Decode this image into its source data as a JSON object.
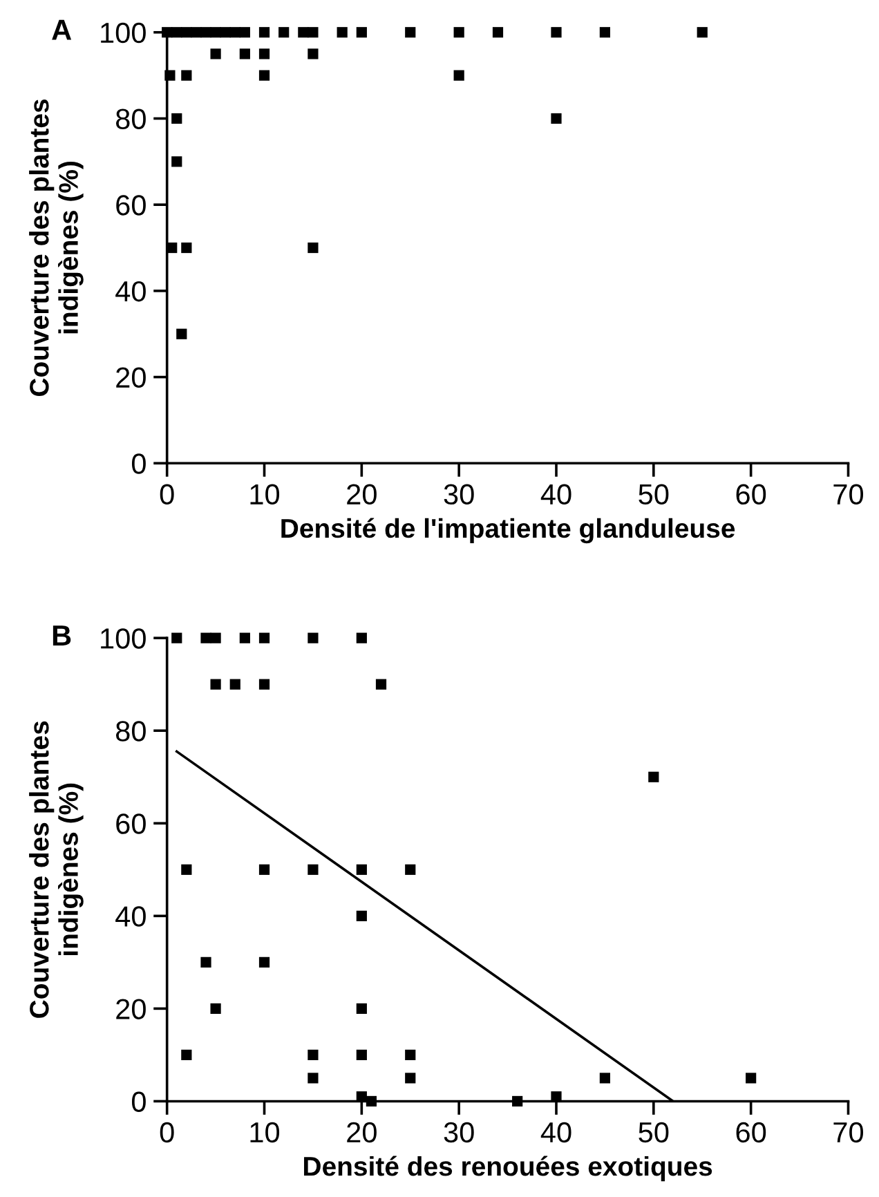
{
  "chart_data": [
    {
      "type": "scatter",
      "title": "A",
      "xlabel": "Densité de l'impatiente glanduleuse",
      "ylabel": "Couverture des plantes\nindigènes (%)",
      "xlim": [
        0,
        70
      ],
      "ylim": [
        0,
        100
      ],
      "xticks": [
        0,
        10,
        20,
        30,
        40,
        50,
        60,
        70
      ],
      "yticks": [
        0,
        20,
        40,
        60,
        80,
        100
      ],
      "marker": "square",
      "series": [
        {
          "color": "#000000",
          "x": [
            0,
            1,
            2,
            3,
            4,
            5,
            6,
            7,
            8,
            10,
            12,
            14,
            15,
            18,
            20,
            25,
            30,
            34,
            40,
            45,
            55,
            5,
            8,
            10,
            15,
            0.3,
            2,
            10,
            30,
            1,
            40,
            1,
            0.5,
            2,
            15,
            1.5
          ],
          "values": [
            100,
            100,
            100,
            100,
            100,
            100,
            100,
            100,
            100,
            100,
            100,
            100,
            100,
            100,
            100,
            100,
            100,
            100,
            100,
            100,
            100,
            95,
            95,
            95,
            95,
            90,
            90,
            90,
            90,
            80,
            80,
            70,
            50,
            50,
            50,
            30
          ]
        }
      ]
    },
    {
      "type": "scatter",
      "title": "B",
      "xlabel": "Densité des renouées exotiques",
      "ylabel": "Couverture des plantes\nindigènes (%)",
      "xlim": [
        0,
        70
      ],
      "ylim": [
        0,
        100
      ],
      "xticks": [
        0,
        10,
        20,
        30,
        40,
        50,
        60,
        70
      ],
      "yticks": [
        0,
        20,
        40,
        60,
        80,
        100
      ],
      "series": [
        {
          "marker": "square",
          "color": "#000000",
          "x": [
            1,
            4,
            5,
            8,
            10,
            15,
            20,
            5,
            7,
            10,
            22,
            50,
            2,
            10,
            15,
            20,
            25,
            20,
            4,
            10,
            5,
            20,
            2,
            15,
            20,
            25,
            15,
            25,
            45,
            60,
            20,
            40,
            21,
            36
          ],
          "values": [
            100,
            100,
            100,
            100,
            100,
            100,
            100,
            90,
            90,
            90,
            90,
            70,
            50,
            50,
            50,
            50,
            50,
            40,
            30,
            30,
            20,
            20,
            10,
            10,
            10,
            10,
            5,
            5,
            5,
            5,
            1,
            1,
            0,
            0
          ]
        },
        {
          "type": "line",
          "marker": "none",
          "color": "#000000",
          "line_style": "solid",
          "x": [
            1,
            52
          ],
          "values": [
            75.5,
            0
          ]
        }
      ]
    }
  ]
}
